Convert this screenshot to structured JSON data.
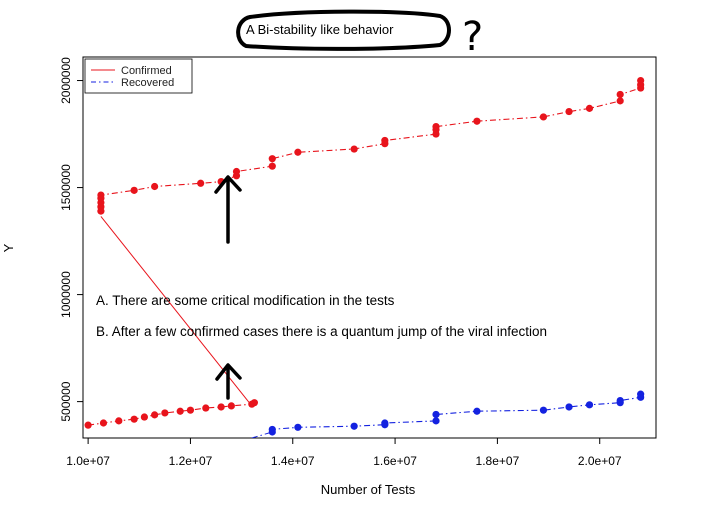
{
  "chart_data": {
    "type": "line",
    "title": "",
    "xlabel": "Number of Tests",
    "ylabel": "Y",
    "xlim": [
      9900000,
      21100000
    ],
    "ylim": [
      330000,
      2110000
    ],
    "x_ticks": [
      10000000,
      12000000,
      14000000,
      16000000,
      18000000,
      20000000
    ],
    "x_tick_labels": [
      "1.0e+07",
      "1.2e+07",
      "1.4e+07",
      "1.6e+07",
      "1.8e+07",
      "2.0e+07"
    ],
    "y_ticks": [
      500000,
      1000000,
      1500000,
      2000000
    ],
    "y_tick_labels": [
      "500000",
      "1000000",
      "1500000",
      "2000000"
    ],
    "grid": false,
    "legend_position": "top-left",
    "series": [
      {
        "name": "Confirmed",
        "color": "#e8141c",
        "line": "dashdot",
        "x": [
          10000000,
          10300000,
          10600000,
          10900000,
          11100000,
          11300000,
          11500000,
          11800000,
          12000000,
          12300000,
          12600000,
          12800000,
          13200000,
          13250000,
          10250000,
          10250000,
          10250000,
          10250000,
          10250000,
          10900000,
          11300000,
          12200000,
          12600000,
          12900000,
          12900000,
          13600000,
          13600000,
          14100000,
          15200000,
          15800000,
          15800000,
          16800000,
          16800000,
          16800000,
          17600000,
          18900000,
          19400000,
          19800000,
          20400000,
          20400000,
          20800000,
          20800000,
          20800000
        ],
        "y": [
          390000,
          400000,
          410000,
          418000,
          428000,
          438000,
          447000,
          455000,
          460000,
          470000,
          475000,
          480000,
          488000,
          495000,
          1390000,
          1410000,
          1430000,
          1450000,
          1465000,
          1487000,
          1505000,
          1520000,
          1528000,
          1555000,
          1575000,
          1600000,
          1635000,
          1665000,
          1680000,
          1705000,
          1720000,
          1750000,
          1770000,
          1785000,
          1810000,
          1830000,
          1855000,
          1870000,
          1905000,
          1935000,
          1965000,
          1980000,
          2000000
        ]
      },
      {
        "name": "Recovered",
        "color": "#1422e0",
        "line": "dashdot",
        "x": [
          13600000,
          13600000,
          14100000,
          15200000,
          15800000,
          15800000,
          16800000,
          16800000,
          17600000,
          18900000,
          19400000,
          19800000,
          20400000,
          20400000,
          20800000,
          20800000
        ],
        "y": [
          358000,
          370000,
          380000,
          385000,
          392000,
          400000,
          410000,
          440000,
          455000,
          460000,
          475000,
          485000,
          495000,
          505000,
          520000,
          535000
        ]
      }
    ],
    "connector": {
      "color": "#e8141c",
      "from": [
        10250000,
        1365000
      ],
      "to": [
        13150000,
        495000
      ]
    },
    "recovered_lead_in": {
      "from": [
        13200000,
        330000
      ],
      "to": [
        13600000,
        358000
      ]
    },
    "annotations": {
      "note_a": "A. There are some critical modification in the tests",
      "note_b": "B. After a few confirmed cases there is a quantum jump of the viral infection",
      "callout": "A Bi-stability like behavior",
      "question_mark": "?"
    }
  }
}
